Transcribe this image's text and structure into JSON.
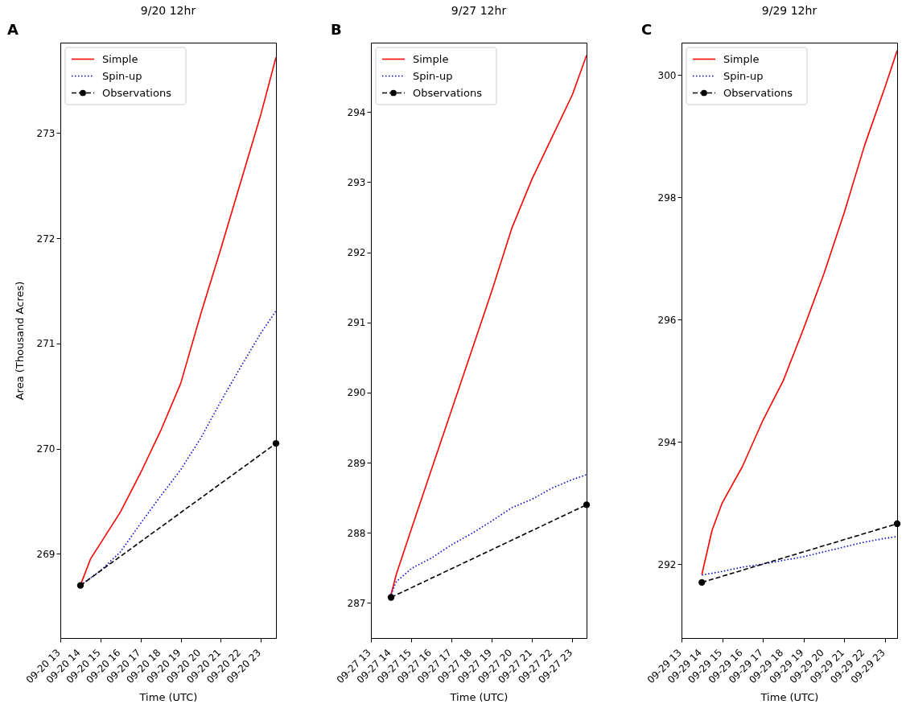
{
  "chart_data": [
    {
      "type": "line",
      "title": "9/20 12hr",
      "xlabel": "Time (UTC)",
      "ylabel": "Area (Thousand Acres)",
      "annotations": [
        "A"
      ],
      "legend": "top left",
      "grid": false,
      "x": [
        "--09-20T14:00",
        "--09-20T14:30",
        "--09-20T15:00",
        "--09-20T16:00",
        "--09-20T17:00",
        "--09-20T18:00",
        "--09-20T19:00",
        "--09-20T20:00",
        "--09-20T21:00",
        "--09-20T22:00",
        "--09-20T23:00",
        "--09-20T23:45"
      ],
      "xlim": [
        "--09-20T13:00",
        "--09-20T23:45"
      ],
      "xticks": [
        {
          "value": "--09-20T13:00",
          "label": "09-20 13"
        },
        {
          "value": "--09-20T14:00",
          "label": "09-20 14"
        },
        {
          "value": "--09-20T15:00",
          "label": "09-20 15"
        },
        {
          "value": "--09-20T16:00",
          "label": "09-20 16"
        },
        {
          "value": "--09-20T17:00",
          "label": "09-20 17"
        },
        {
          "value": "--09-20T18:00",
          "label": "09-20 18"
        },
        {
          "value": "--09-20T19:00",
          "label": "09-20 19"
        },
        {
          "value": "--09-20T20:00",
          "label": "09-20 20"
        },
        {
          "value": "--09-20T21:00",
          "label": "09-20 21"
        },
        {
          "value": "--09-20T22:00",
          "label": "09-20 22"
        },
        {
          "value": "--09-20T23:00",
          "label": "09-20 23"
        }
      ],
      "ylim": [
        268.2,
        273.86
      ],
      "yticks": [
        269,
        270,
        271,
        272,
        273
      ],
      "series": [
        {
          "name": "Simple",
          "color": "#ff0000",
          "line_style": "solid",
          "values": [
            268.7,
            268.95,
            269.1,
            269.4,
            269.77,
            270.17,
            270.62,
            271.28,
            271.9,
            272.54,
            273.18,
            273.72
          ]
        },
        {
          "name": "Spin-up",
          "color": "#0000cc",
          "line_style": "dotted",
          "values": [
            268.7,
            268.77,
            268.84,
            269.02,
            269.29,
            269.55,
            269.8,
            270.1,
            270.45,
            270.78,
            271.1,
            271.31
          ]
        },
        {
          "name": "Observations",
          "color": "#000000",
          "line_style": "dashed",
          "marker": "circle",
          "x": [
            "--09-20T14:00",
            "--09-20T23:45"
          ],
          "values": [
            268.7,
            270.05
          ]
        }
      ]
    },
    {
      "type": "line",
      "title": "9/27 12hr",
      "xlabel": "Time (UTC)",
      "annotations": [
        "B"
      ],
      "legend": "top left",
      "grid": false,
      "x": [
        "--09-27T14:00",
        "--09-27T14:15",
        "--09-27T15:00",
        "--09-27T16:00",
        "--09-27T17:00",
        "--09-27T18:00",
        "--09-27T19:00",
        "--09-27T20:00",
        "--09-27T21:00",
        "--09-27T22:00",
        "--09-27T23:00",
        "--09-27T23:42"
      ],
      "xlim": [
        "--09-27T13:00",
        "--09-27T23:42"
      ],
      "xticks": [
        {
          "value": "--09-27T13:00",
          "label": "09-27 13"
        },
        {
          "value": "--09-27T14:00",
          "label": "09-27 14"
        },
        {
          "value": "--09-27T15:00",
          "label": "09-27 15"
        },
        {
          "value": "--09-27T16:00",
          "label": "09-27 16"
        },
        {
          "value": "--09-27T17:00",
          "label": "09-27 17"
        },
        {
          "value": "--09-27T18:00",
          "label": "09-27 18"
        },
        {
          "value": "--09-27T19:00",
          "label": "09-27 19"
        },
        {
          "value": "--09-27T20:00",
          "label": "09-27 20"
        },
        {
          "value": "--09-27T21:00",
          "label": "09-27 21"
        },
        {
          "value": "--09-27T22:00",
          "label": "09-27 22"
        },
        {
          "value": "--09-27T23:00",
          "label": "09-27 23"
        }
      ],
      "ylim": [
        286.5,
        294.99
      ],
      "yticks": [
        287,
        288,
        289,
        290,
        291,
        292,
        293,
        294
      ],
      "series": [
        {
          "name": "Simple",
          "color": "#ff0000",
          "line_style": "solid",
          "values": [
            287.12,
            287.4,
            288.05,
            288.9,
            289.75,
            290.6,
            291.45,
            292.35,
            293.05,
            293.65,
            294.25,
            294.81
          ]
        },
        {
          "name": "Spin-up",
          "color": "#0000cc",
          "line_style": "dotted",
          "values": [
            287.12,
            287.3,
            287.49,
            287.64,
            287.83,
            287.99,
            288.17,
            288.36,
            288.48,
            288.64,
            288.76,
            288.83
          ]
        },
        {
          "name": "Observations",
          "color": "#000000",
          "line_style": "dashed",
          "marker": "circle",
          "x": [
            "--09-27T14:00",
            "--09-27T23:42"
          ],
          "values": [
            287.08,
            288.4
          ]
        }
      ]
    },
    {
      "type": "line",
      "title": "9/29 12hr",
      "xlabel": "Time (UTC)",
      "annotations": [
        "C"
      ],
      "legend": "top left",
      "grid": false,
      "x": [
        "--09-29T14:00",
        "--09-29T14:30",
        "--09-29T15:00",
        "--09-29T16:00",
        "--09-29T17:00",
        "--09-29T18:00",
        "--09-29T19:00",
        "--09-29T20:00",
        "--09-29T21:00",
        "--09-29T22:00",
        "--09-29T23:00",
        "--09-29T23:36"
      ],
      "xlim": [
        "--09-29T13:00",
        "--09-29T23:36"
      ],
      "xticks": [
        {
          "value": "--09-29T13:00",
          "label": "09-29 13"
        },
        {
          "value": "--09-29T14:00",
          "label": "09-29 14"
        },
        {
          "value": "--09-29T15:00",
          "label": "09-29 15"
        },
        {
          "value": "--09-29T16:00",
          "label": "09-29 16"
        },
        {
          "value": "--09-29T17:00",
          "label": "09-29 17"
        },
        {
          "value": "--09-29T18:00",
          "label": "09-29 18"
        },
        {
          "value": "--09-29T19:00",
          "label": "09-29 19"
        },
        {
          "value": "--09-29T20:00",
          "label": "09-29 20"
        },
        {
          "value": "--09-29T21:00",
          "label": "09-29 21"
        },
        {
          "value": "--09-29T22:00",
          "label": "09-29 22"
        },
        {
          "value": "--09-29T23:00",
          "label": "09-29 23"
        }
      ],
      "ylim": [
        290.79,
        300.53
      ],
      "yticks": [
        292,
        294,
        296,
        298,
        300
      ],
      "series": [
        {
          "name": "Simple",
          "color": "#ff0000",
          "line_style": "solid",
          "values": [
            291.83,
            292.55,
            293.0,
            293.6,
            294.35,
            295.0,
            295.85,
            296.75,
            297.75,
            298.85,
            299.8,
            300.4
          ]
        },
        {
          "name": "Spin-up",
          "color": "#0000cc",
          "line_style": "dotted",
          "values": [
            291.82,
            291.85,
            291.88,
            291.95,
            292.0,
            292.06,
            292.12,
            292.2,
            292.28,
            292.36,
            292.42,
            292.45
          ]
        },
        {
          "name": "Observations",
          "color": "#000000",
          "line_style": "dashed",
          "marker": "circle",
          "x": [
            "--09-29T14:00",
            "--09-29T23:36"
          ],
          "values": [
            291.7,
            292.66
          ]
        }
      ]
    }
  ]
}
